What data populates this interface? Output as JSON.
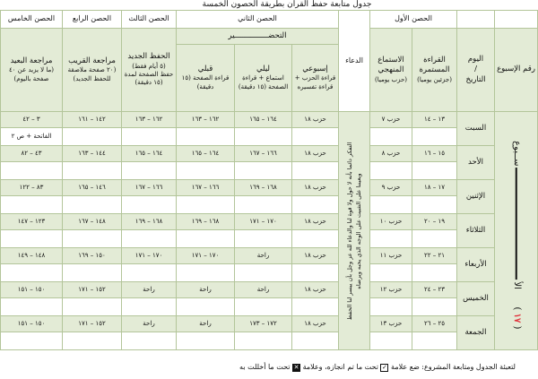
{
  "title": "جدول متابعة حفظ القرآن بطريقة الحصون الخمسة",
  "headers": {
    "fort1": "الحصن الأول",
    "dua": "الدعاء",
    "fort2": "الحصن الثاني",
    "fort3": "الحصن الثالث",
    "fort4": "الحصن الرابع",
    "fort5": "الحصن الخامس",
    "week_no": "رقم الإسبوع",
    "day": "اليوم",
    "day_sep": "/",
    "date": "التاريخ",
    "continuous_title": "القراءة المستمرة",
    "continuous_sub": "(جزئين يوميا)",
    "method_title": "الاستماع المنهجي",
    "method_sub": "(حزب يوميا)",
    "prep": "التحضـــــــــــــــير",
    "weekly_title": "إسبوعي",
    "weekly_sub": "قراءة الحزب + قراءة تفسيره",
    "nightly_title": "ليلي",
    "nightly_sub": "استماع + قراءة الصفحة (١٥ دقيقة)",
    "before_title": "قبلي",
    "before_sub": "قراءة الصفحة (١٥ دقيقة)",
    "new_title": "الحفظ الجديد",
    "new_sub1": "(٥ أيام فقط)",
    "new_sub2": "حفظ الصفحة لمدة (١٥ دقيقة)",
    "near_title": "مراجعة القريب",
    "near_sub": "(٢٠ صفحة ملاصقة للحفظ الجديد)",
    "far_title": "مراجعة البعيد",
    "far_sub": "(ما لا يزيد عن ٤٠ صفحة باليوم)"
  },
  "week": {
    "label_start": "الأ",
    "label_end": "ســبوع",
    "number": "١٧"
  },
  "dua_text": {
    "line1": "التفكر دائما بأنه لا حول ولا قوة لنا والدعاء لله عز وجل بأن ييسر لنا الحفظ",
    "line2": "ويعيننا على التثبيت على الوجه الذي يحبه ويرضاه"
  },
  "rows": [
    {
      "day": "السبت",
      "continuous": "١٣ – ١٤",
      "method": "حزب ٧",
      "weekly": "حزب ١٨",
      "nightly": "١٦٤ – ١٦٥",
      "before": "١٦٢ – ١٦٣",
      "new": "١٦٢ – ١٦٣",
      "near": "١٤٢ – ١٦١",
      "far": "٣ – ٤٢",
      "far_note": "الفاتحة + ص ٢"
    },
    {
      "day": "الأحد",
      "continuous": "١٥ – ١٦",
      "method": "حزب ٨",
      "weekly": "حزب ١٨",
      "nightly": "١٦٦ – ١٦٧",
      "before": "١٦٤ – ١٦٥",
      "new": "١٦٤ – ١٦٥",
      "near": "١٤٤ – ١٦٣",
      "far": "٤٣ – ٨٢"
    },
    {
      "day": "الإثنين",
      "continuous": "١٧ – ١٨",
      "method": "حزب ٩",
      "weekly": "حزب ١٨",
      "nightly": "١٦٨ – ١٦٩",
      "before": "١٦٦ – ١٦٧",
      "new": "١٦٦ – ١٦٧",
      "near": "١٤٦ – ١٦٥",
      "far": "٨٣ – ١٢٢"
    },
    {
      "day": "الثلاثاء",
      "continuous": "١٩ – ٢٠",
      "method": "حزب ١٠",
      "weekly": "حزب ١٨",
      "nightly": "١٧٠ – ١٧١",
      "before": "١٦٨ – ١٦٩",
      "new": "١٦٨ – ١٦٩",
      "near": "١٤٨ – ١٦٧",
      "far": "١٢٣ – ١٤٧"
    },
    {
      "day": "الأربعاء",
      "continuous": "٢١ – ٢٢",
      "method": "حزب ١١",
      "weekly": "حزب ١٨",
      "nightly": "راحة",
      "before": "١٧٠ – ١٧١",
      "new": "١٧٠ – ١٧١",
      "near": "١٥٠ – ١٦٩",
      "far": "١٤٨ – ١٤٩"
    },
    {
      "day": "الخميس",
      "continuous": "٢٣ – ٢٤",
      "method": "حزب ١٢",
      "weekly": "حزب ١٨",
      "nightly": "راحة",
      "before": "راحة",
      "new": "راحة",
      "near": "١٥٢ – ١٧١",
      "far": "١٥٠ – ١٥١"
    },
    {
      "day": "الجمعة",
      "continuous": "٢٥ – ٢٦",
      "method": "حزب ١٣",
      "weekly": "حزب ١٨",
      "nightly": "١٧٢ – ١٧٣",
      "before": "راحة",
      "new": "راحة",
      "near": "١٥٢ – ١٧١",
      "far": "١٥٠ – ١٥١"
    }
  ],
  "footer": {
    "part1": "لتعبئة الجدول ومتابعة المشروع: ضع علامة",
    "check_icon": "checkbox-checked-icon",
    "part2": "تحت ما تم انجازه، وعلامة",
    "cross_icon": "checkbox-crossed-icon",
    "part3": "تحت ما أخللت به"
  },
  "colors": {
    "header_green": "#e3ebd6",
    "border": "#b3c59a",
    "week_number": "#e0303a"
  }
}
